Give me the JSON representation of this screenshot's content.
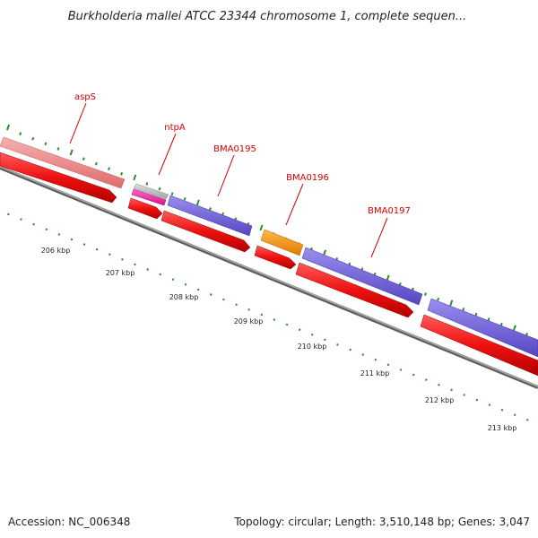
{
  "title": "Burkholderia mallei ATCC 23344 chromosome 1, complete sequen...",
  "footer": {
    "accession": "Accession: NC_006348",
    "summary": "Topology: circular; Length: 3,510,148 bp; Genes: 3,047"
  },
  "colors": {
    "backbone": "#7a7a7a",
    "cds_forward_red": "#ee1111",
    "label_red": "#d40000",
    "gene_pink": "#f08080",
    "gene_gray": "#bdbdbd",
    "gene_magenta": "#ee33aa",
    "gene_blue": "#7766dd",
    "gene_orange": "#ff9911",
    "tick_green": "#2e8b2e"
  },
  "position_labels": [
    "206 kbp",
    "207 kbp",
    "208 kbp",
    "209 kbp",
    "210 kbp",
    "211 kbp",
    "212 kbp",
    "213 kbp"
  ],
  "gene_labels": [
    "aspS",
    "ntpA",
    "BMA0195",
    "BMA0196",
    "BMA0197"
  ],
  "features": [
    {
      "track": "gene",
      "color": "gene_pink",
      "label": "aspS"
    },
    {
      "track": "gene",
      "color": "gene_gray",
      "label": "ntpA"
    },
    {
      "track": "gene",
      "color": "gene_magenta",
      "label": ""
    },
    {
      "track": "gene",
      "color": "gene_blue",
      "label": "BMA0195"
    },
    {
      "track": "gene",
      "color": "gene_orange",
      "label": "BMA0196"
    },
    {
      "track": "gene",
      "color": "gene_blue",
      "label": "BMA0197"
    },
    {
      "track": "gene",
      "color": "gene_blue",
      "label": ""
    },
    {
      "track": "cds",
      "color": "cds_forward_red",
      "label": ""
    },
    {
      "track": "cds",
      "color": "cds_forward_red",
      "label": ""
    },
    {
      "track": "cds",
      "color": "cds_forward_red",
      "label": ""
    },
    {
      "track": "cds",
      "color": "cds_forward_red",
      "label": ""
    },
    {
      "track": "cds",
      "color": "cds_forward_red",
      "label": ""
    },
    {
      "track": "cds",
      "color": "cds_forward_red",
      "label": ""
    }
  ]
}
